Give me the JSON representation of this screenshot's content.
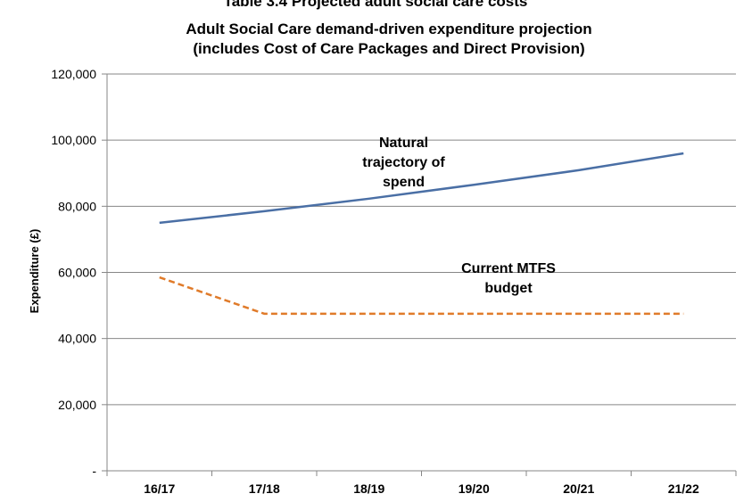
{
  "chart_data": {
    "type": "line",
    "top_caption": "Table 3.4 Projected adult social care costs",
    "title_lines": [
      "Adult Social Care demand-driven expenditure projection",
      "(includes Cost of Care Packages and Direct Provision)"
    ],
    "ylabel": "Expenditure (£)",
    "xlabel": "",
    "categories": [
      "16/17",
      "17/18",
      "18/19",
      "19/20",
      "20/21",
      "21/22"
    ],
    "ylim": [
      0,
      120000
    ],
    "yticks": [
      0,
      20000,
      40000,
      60000,
      80000,
      100000,
      120000
    ],
    "ytick_labels": [
      "-",
      "20,000",
      "40,000",
      "60,000",
      "80,000",
      "100,000",
      "120,000"
    ],
    "grid": true,
    "series": [
      {
        "name": "Natural trajectory of spend",
        "label_lines": [
          "Natural",
          "trajectory of",
          "spend"
        ],
        "values": [
          75000,
          78500,
          82300,
          86500,
          90900,
          96000
        ],
        "color": "#4a6fa5",
        "style": "solid"
      },
      {
        "name": "Current MTFS budget",
        "label_lines": [
          "Current MTFS",
          "budget"
        ],
        "values": [
          58500,
          47500,
          47500,
          47500,
          47500,
          47500
        ],
        "color": "#e07b2a",
        "style": "dashed"
      }
    ]
  }
}
